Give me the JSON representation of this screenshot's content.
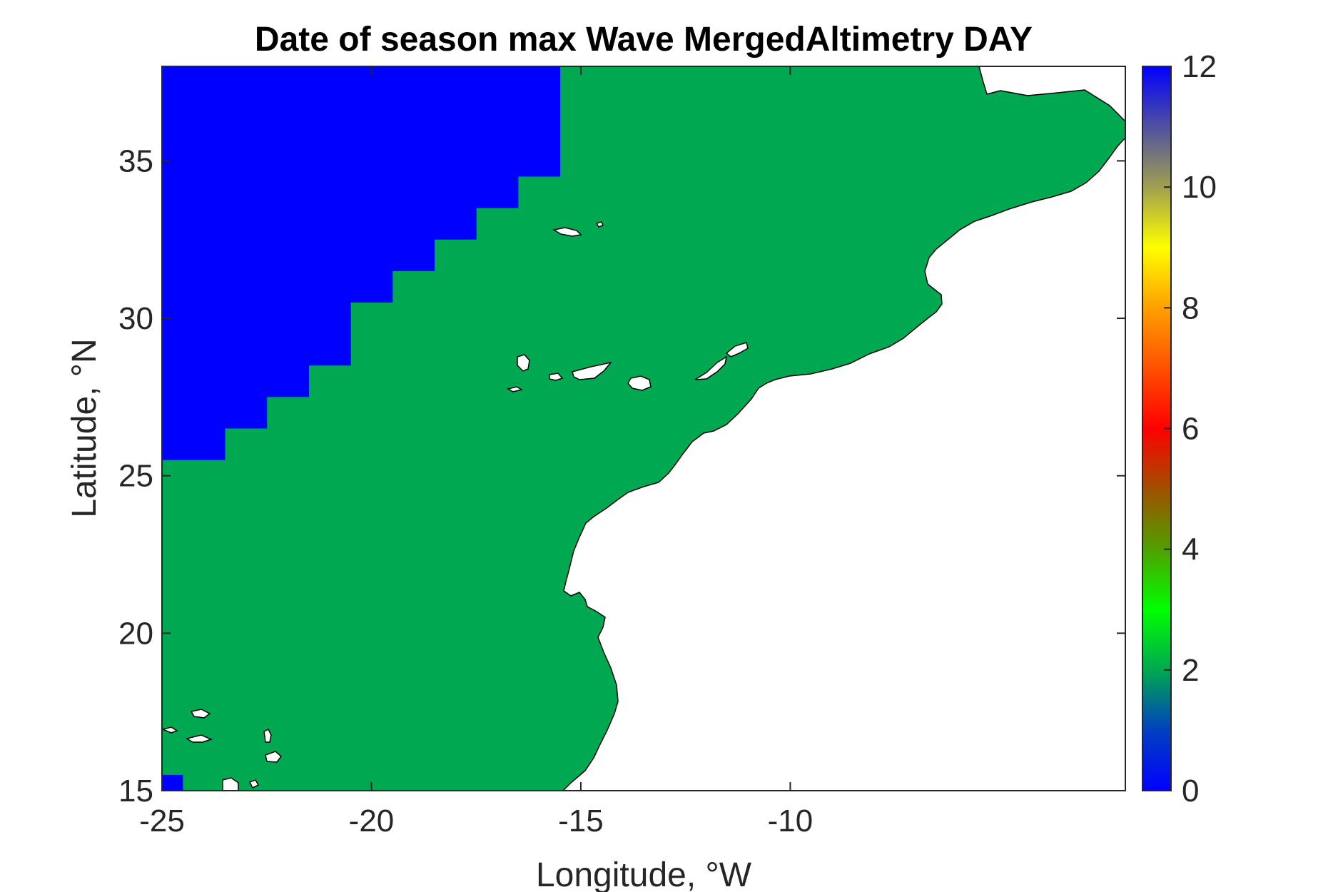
{
  "chart_data": {
    "type": "heatmap",
    "title": "Date of season max Wave MergedAltimetry DAY",
    "xlabel": "Longitude, °W",
    "ylabel": "Latitude, °N",
    "xlim": [
      -25,
      -2
    ],
    "ylim": [
      15,
      38
    ],
    "xticks": [
      "-25",
      "-20",
      "-15",
      "-10"
    ],
    "xtick_values": [
      -25,
      -20,
      -15,
      -10
    ],
    "yticks": [
      "15",
      "20",
      "25",
      "30",
      "35"
    ],
    "ytick_values": [
      15,
      20,
      25,
      30,
      35
    ],
    "colorbar": {
      "range": [
        0,
        12
      ],
      "ticks": [
        "0",
        "2",
        "4",
        "6",
        "8",
        "10",
        "12"
      ],
      "tick_values": [
        0,
        2,
        4,
        6,
        8,
        10,
        12
      ]
    },
    "regions": [
      {
        "label": "value 12 (blue) region, latitude boundary by longitude band",
        "value": 12,
        "color": "#0000ff"
      },
      {
        "label": "value ~2 (green) ocean",
        "value": 2,
        "color": "#00a852"
      },
      {
        "label": "land (no data)",
        "value": null,
        "color": "#ffffff"
      }
    ],
    "blue_boundary_steps": [
      {
        "lon_start": -25.0,
        "lon_end": -23.5,
        "lat_min": 25.5
      },
      {
        "lon_start": -23.5,
        "lon_end": -22.5,
        "lat_min": 26.5
      },
      {
        "lon_start": -22.5,
        "lon_end": -21.5,
        "lat_min": 27.5
      },
      {
        "lon_start": -21.5,
        "lon_end": -20.5,
        "lat_min": 28.5
      },
      {
        "lon_start": -20.5,
        "lon_end": -19.5,
        "lat_min": 30.5
      },
      {
        "lon_start": -19.5,
        "lon_end": -18.5,
        "lat_min": 31.5
      },
      {
        "lon_start": -18.5,
        "lon_end": -17.5,
        "lat_min": 32.5
      },
      {
        "lon_start": -17.5,
        "lon_end": -16.5,
        "lat_min": 33.5
      },
      {
        "lon_start": -16.5,
        "lon_end": -15.5,
        "lat_min": 34.5
      }
    ],
    "colors": {
      "blue": "#0000ff",
      "green": "#00a852",
      "land": "#ffffff",
      "coast": "#000000"
    }
  }
}
